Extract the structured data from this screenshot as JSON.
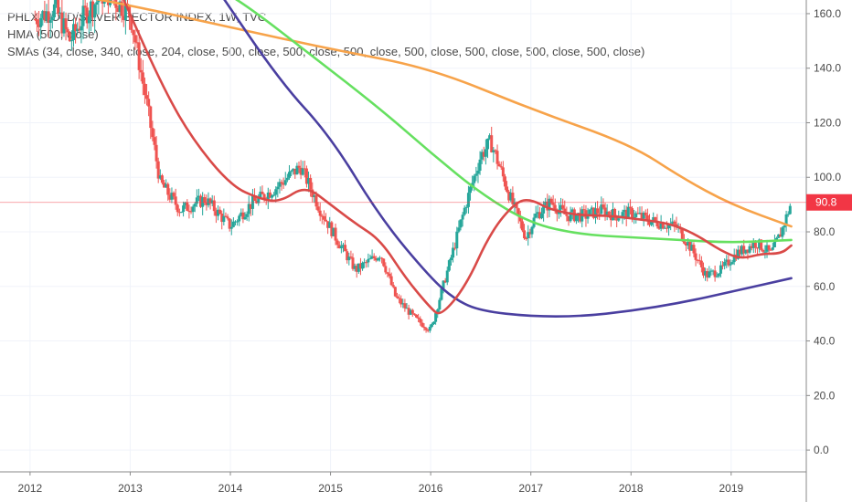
{
  "legend": {
    "title": "PHLX GOLD/SILVER SECTOR INDEX, 1W, TVC",
    "hma": "HMA (500, close)",
    "smas": "SMAs (34, close, 340, close, 204, close, 500, close, 500, close, 500, close, 500, close, 500, close, 500, close, 500, close)"
  },
  "price_tag": {
    "value": "90.8",
    "color": "#f23645"
  },
  "chart_data": {
    "type": "candlestick",
    "x_axis": {
      "range": [
        2011.7,
        2019.75
      ],
      "tick_labels": [
        "2012",
        "2013",
        "2014",
        "2015",
        "2016",
        "2017",
        "2018",
        "2019"
      ],
      "tick_values": [
        2012,
        2013,
        2014,
        2015,
        2016,
        2017,
        2018,
        2019
      ]
    },
    "y_axis": {
      "range": [
        -8,
        165
      ],
      "position": "right",
      "tick_labels": [
        "0.0",
        "20.0",
        "40.0",
        "60.0",
        "80.0",
        "100.0",
        "120.0",
        "140.0",
        "160.0"
      ],
      "tick_values": [
        0,
        20,
        40,
        60,
        80,
        100,
        120,
        140,
        160
      ]
    },
    "grid": true,
    "last_price": 90.8,
    "colors": {
      "up": "#26a69a",
      "down": "#ef5350"
    },
    "price_path": [
      [
        2012.05,
        158
      ],
      [
        2012.25,
        162
      ],
      [
        2012.4,
        150
      ],
      [
        2012.55,
        160
      ],
      [
        2012.75,
        168
      ],
      [
        2013.0,
        160
      ],
      [
        2013.15,
        130
      ],
      [
        2013.3,
        98
      ],
      [
        2013.5,
        88
      ],
      [
        2013.75,
        92
      ],
      [
        2014.0,
        82
      ],
      [
        2014.2,
        90
      ],
      [
        2014.45,
        96
      ],
      [
        2014.7,
        104
      ],
      [
        2014.9,
        88
      ],
      [
        2015.05,
        78
      ],
      [
        2015.25,
        66
      ],
      [
        2015.5,
        72
      ],
      [
        2015.65,
        56
      ],
      [
        2015.85,
        48
      ],
      [
        2016.0,
        44
      ],
      [
        2016.2,
        70
      ],
      [
        2016.35,
        90
      ],
      [
        2016.5,
        108
      ],
      [
        2016.6,
        113
      ],
      [
        2016.8,
        92
      ],
      [
        2016.95,
        78
      ],
      [
        2017.05,
        86
      ],
      [
        2017.2,
        91
      ],
      [
        2017.35,
        86
      ],
      [
        2017.55,
        86
      ],
      [
        2017.7,
        88
      ],
      [
        2017.85,
        86
      ],
      [
        2018.0,
        87
      ],
      [
        2018.2,
        84
      ],
      [
        2018.45,
        82
      ],
      [
        2018.6,
        74
      ],
      [
        2018.75,
        64
      ],
      [
        2018.9,
        66
      ],
      [
        2019.05,
        72
      ],
      [
        2019.25,
        76
      ],
      [
        2019.4,
        72
      ],
      [
        2019.5,
        80
      ],
      [
        2019.6,
        90.8
      ]
    ],
    "lines": [
      {
        "color": "#f7a34a",
        "values": [
          [
            2012.0,
            170
          ],
          [
            2013.0,
            163
          ],
          [
            2013.5,
            159
          ],
          [
            2014.0,
            155
          ],
          [
            2015.0,
            147
          ],
          [
            2016.0,
            140
          ],
          [
            2017.0,
            125
          ],
          [
            2018.0,
            112
          ],
          [
            2018.5,
            100
          ],
          [
            2019.0,
            90
          ],
          [
            2019.6,
            82
          ]
        ]
      },
      {
        "color": "#66e060",
        "values": [
          [
            2013.85,
            170
          ],
          [
            2014.2,
            162
          ],
          [
            2014.8,
            145
          ],
          [
            2015.5,
            125
          ],
          [
            2016.0,
            109
          ],
          [
            2016.5,
            94
          ],
          [
            2017.0,
            83
          ],
          [
            2017.5,
            79
          ],
          [
            2018.0,
            78
          ],
          [
            2018.5,
            77
          ],
          [
            2019.0,
            76
          ],
          [
            2019.6,
            77
          ]
        ]
      },
      {
        "color": "#4a3fa0",
        "values": [
          [
            2013.85,
            170
          ],
          [
            2014.5,
            135
          ],
          [
            2015.0,
            115
          ],
          [
            2015.5,
            85
          ],
          [
            2016.0,
            63
          ],
          [
            2016.25,
            55
          ],
          [
            2016.5,
            51
          ],
          [
            2017.0,
            49
          ],
          [
            2017.5,
            49
          ],
          [
            2018.0,
            51
          ],
          [
            2018.5,
            54
          ],
          [
            2019.0,
            58
          ],
          [
            2019.6,
            63
          ]
        ]
      },
      {
        "color": "#d94a48",
        "values": [
          [
            2012.9,
            168
          ],
          [
            2013.3,
            135
          ],
          [
            2013.6,
            115
          ],
          [
            2014.0,
            97
          ],
          [
            2014.3,
            92
          ],
          [
            2014.5,
            91
          ],
          [
            2014.75,
            97
          ],
          [
            2015.0,
            90
          ],
          [
            2015.25,
            83
          ],
          [
            2015.5,
            77
          ],
          [
            2015.75,
            63
          ],
          [
            2016.0,
            52
          ],
          [
            2016.1,
            49
          ],
          [
            2016.35,
            60
          ],
          [
            2016.6,
            80
          ],
          [
            2016.85,
            91
          ],
          [
            2017.0,
            92
          ],
          [
            2017.2,
            88
          ],
          [
            2017.5,
            86
          ],
          [
            2017.75,
            86
          ],
          [
            2018.0,
            85
          ],
          [
            2018.4,
            83
          ],
          [
            2018.65,
            79
          ],
          [
            2018.9,
            73
          ],
          [
            2019.1,
            70
          ],
          [
            2019.3,
            72
          ],
          [
            2019.5,
            72
          ],
          [
            2019.6,
            75
          ]
        ]
      }
    ]
  }
}
